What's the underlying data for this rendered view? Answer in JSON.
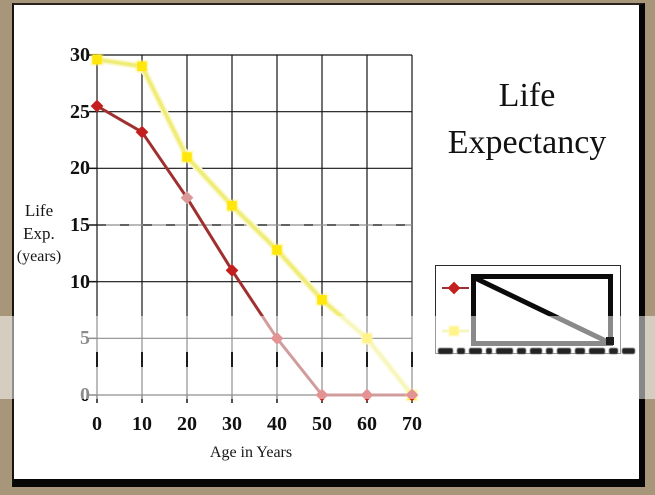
{
  "slide": {
    "background": "#ffffff",
    "frame_color": "#a8967b",
    "border_color": "#060606"
  },
  "title": {
    "line1": "Life",
    "line2": "Expectancy"
  },
  "chart_data": {
    "type": "line",
    "title": "Life Expectancy",
    "x": [
      0,
      10,
      20,
      30,
      40,
      50,
      60,
      70
    ],
    "xlabel": "Age in Years",
    "ylabel": "Life Exp. (years)",
    "ylabel_lines": [
      "Life",
      "Exp.",
      "(years)"
    ],
    "xlim": [
      0,
      70
    ],
    "ylim": [
      0,
      30
    ],
    "yticks": [
      0,
      5,
      10,
      15,
      20,
      25,
      30
    ],
    "grid": true,
    "gridline_color": "#151515",
    "legend": {
      "position": "right-middle",
      "labels_visible": false
    },
    "series": [
      {
        "name": "series-red",
        "marker": "diamond",
        "line_color": "#a03030",
        "marker_color": "#c41f1f",
        "marker_overrides": {
          "2": "#db9999"
        },
        "values": [
          25.5,
          23.2,
          17.4,
          11,
          5,
          0,
          0,
          0
        ]
      },
      {
        "name": "series-yellow",
        "marker": "square",
        "line_color": "#f0ec7a",
        "halo_color": "#faf8c9",
        "marker_color": "#ffe70c",
        "values": [
          29.6,
          29,
          21,
          16.7,
          12.8,
          8.4,
          5,
          0
        ]
      }
    ]
  }
}
